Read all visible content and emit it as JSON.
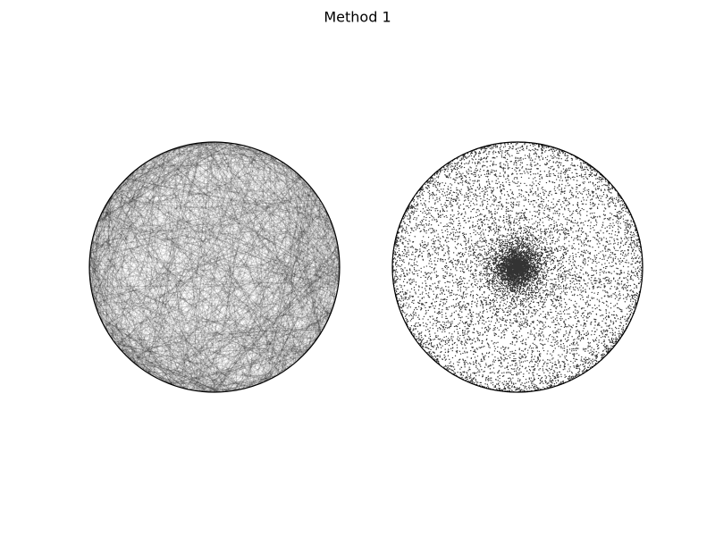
{
  "figure": {
    "title": "Method 1"
  }
}
